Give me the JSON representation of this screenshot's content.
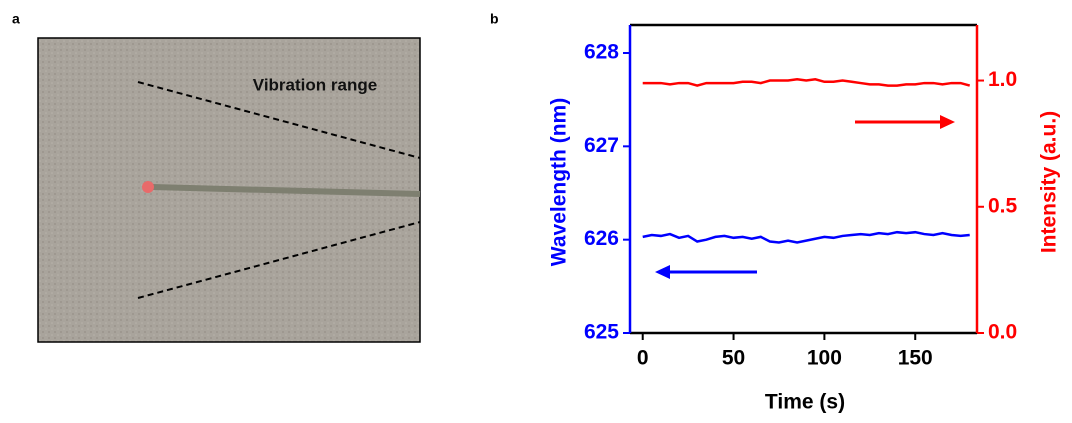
{
  "panel_labels": [
    "a",
    "b"
  ],
  "photo": {
    "annotation": "Vibration range"
  },
  "chart_data": {
    "type": "line",
    "x_label": "Time (s)",
    "y_label": "Wavelength (nm)",
    "y2_label": "Intensity (a.u.)",
    "x": [
      0,
      5,
      10,
      15,
      20,
      25,
      30,
      35,
      40,
      45,
      50,
      55,
      60,
      65,
      70,
      75,
      80,
      85,
      90,
      95,
      100,
      105,
      110,
      115,
      120,
      125,
      130,
      135,
      140,
      145,
      150,
      155,
      160,
      165,
      170,
      175,
      180
    ],
    "series": [
      {
        "color": "#0000ff",
        "axis": "y",
        "values": [
          626.03,
          626.05,
          626.04,
          626.06,
          626.02,
          626.04,
          625.98,
          626.0,
          626.03,
          626.04,
          626.02,
          626.03,
          626.01,
          626.03,
          625.98,
          625.97,
          625.99,
          625.97,
          625.99,
          626.01,
          626.03,
          626.02,
          626.04,
          626.05,
          626.06,
          626.05,
          626.07,
          626.06,
          626.08,
          626.07,
          626.08,
          626.06,
          626.05,
          626.07,
          626.05,
          626.04,
          626.05
        ]
      },
      {
        "color": "#ff0000",
        "axis": "y2",
        "values": [
          0.99,
          0.99,
          0.99,
          0.985,
          0.99,
          0.99,
          0.98,
          0.99,
          0.99,
          0.99,
          0.99,
          0.995,
          0.995,
          0.99,
          1.0,
          1.0,
          1.0,
          1.005,
          1.0,
          1.005,
          0.995,
          0.995,
          1.0,
          0.995,
          0.99,
          0.985,
          0.985,
          0.98,
          0.98,
          0.985,
          0.985,
          0.99,
          0.99,
          0.985,
          0.99,
          0.99,
          0.98
        ]
      }
    ],
    "xlim": [
      -7,
      184
    ],
    "xticks": [
      0,
      50,
      100,
      150
    ],
    "ylim": [
      625,
      628.3
    ],
    "yticks": [
      625,
      626,
      627,
      628
    ],
    "y2lim": [
      0,
      1.22
    ],
    "y2ticks": [
      {
        "value": 0,
        "label": "0.0"
      },
      0.5,
      {
        "value": 1,
        "label": "1.0"
      }
    ]
  }
}
